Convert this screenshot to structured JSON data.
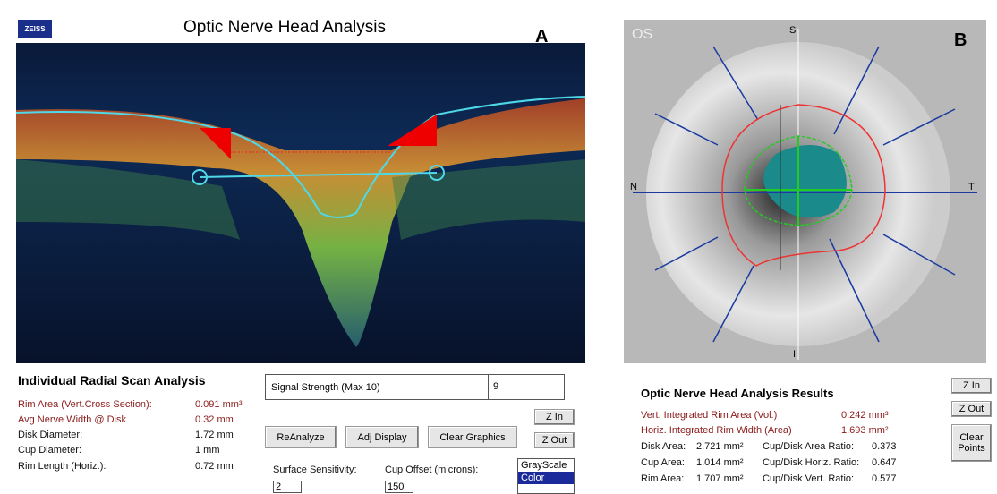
{
  "header": {
    "logo": "ZEISS",
    "title": "Optic Nerve Head Analysis",
    "panel_a": "A",
    "panel_b": "B"
  },
  "fundus": {
    "eye": "OS",
    "superior": "S",
    "nasal": "N",
    "temporal": "T",
    "inferior": "I"
  },
  "radial_scan": {
    "title": "Individual Radial Scan Analysis",
    "rows": [
      [
        "Rim Area (Vert.Cross Section):",
        "0.091 mm³"
      ],
      [
        "Avg Nerve Width @ Disk",
        "0.32 mm"
      ],
      [
        "Disk Diameter:",
        "1.72 mm"
      ],
      [
        "Cup Diameter:",
        "1 mm"
      ],
      [
        "Rim Length (Horiz.):",
        "0.72 mm"
      ]
    ]
  },
  "signal": {
    "label": "Signal Strength (Max 10)",
    "value": "9"
  },
  "left_buttons": [
    "ReAnalyze",
    "Adj Display",
    "Clear Graphics",
    "Z In",
    "Z Out"
  ],
  "controls": {
    "surface_label": "Surface Sensitivity:",
    "surface_value": "2",
    "offset_label": "Cup Offset (microns):",
    "offset_value": "150",
    "display_options": [
      "GrayScale",
      "Color"
    ]
  },
  "results": {
    "title": "Optic Nerve Head Analysis Results",
    "integrated": [
      [
        "Vert. Integrated Rim Area (Vol.)",
        "0.242 mm³"
      ],
      [
        "Horiz. Integrated Rim Width (Area)",
        "1.693 mm²"
      ]
    ],
    "rows": [
      [
        "Disk Area:",
        "2.721 mm²",
        "Cup/Disk Area Ratio:",
        "0.373"
      ],
      [
        "Cup Area:",
        "1.014 mm²",
        "Cup/Disk Horiz. Ratio:",
        "0.647"
      ],
      [
        "Rim Area:",
        "1.707 mm²",
        "Cup/Disk Vert. Ratio:",
        "0.577"
      ]
    ]
  },
  "right_buttons": [
    "Z In",
    "Z Out",
    "Clear Points"
  ]
}
